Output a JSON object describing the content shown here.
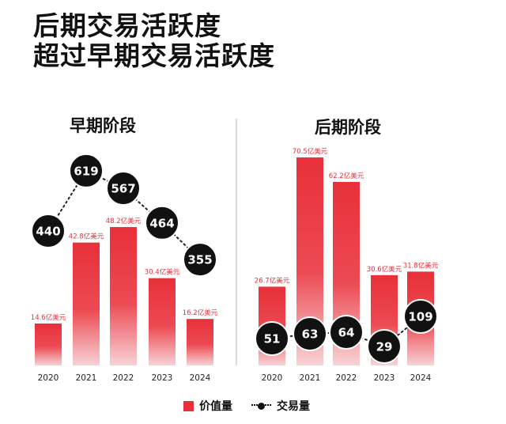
{
  "headline": {
    "line1": "后期交易活跃度",
    "line2": "超过早期交易活跃度"
  },
  "legend": {
    "bar_label": "价值量",
    "line_label": "交易量"
  },
  "colors": {
    "bar_top": "#e8303a",
    "bar_bottom": "#f7d3d6",
    "bubble": "#111111",
    "value_label": "#e8303a"
  },
  "chart_data": [
    {
      "type": "bar",
      "title": "早期阶段",
      "categories": [
        "2020",
        "2021",
        "2022",
        "2023",
        "2024"
      ],
      "series": [
        {
          "name": "价值量",
          "values": [
            14.6,
            42.8,
            48.2,
            30.4,
            16.2
          ],
          "labels": [
            "14.6亿美元",
            "42.8亿美元",
            "48.2亿美元",
            "30.4亿美元",
            "16.2亿美元"
          ]
        },
        {
          "name": "交易量",
          "type": "line",
          "values": [
            440,
            619,
            567,
            464,
            355
          ]
        }
      ]
    },
    {
      "type": "bar",
      "title": "后期阶段",
      "categories": [
        "2020",
        "2021",
        "2022",
        "2023",
        "2024"
      ],
      "series": [
        {
          "name": "价值量",
          "values": [
            26.7,
            70.5,
            62.2,
            30.6,
            31.8
          ],
          "labels": [
            "26.7亿美元",
            "70.5亿美元",
            "62.2亿美元",
            "30.6亿美元",
            "31.8亿美元"
          ]
        },
        {
          "name": "交易量",
          "type": "line",
          "values": [
            51,
            63,
            64,
            29,
            109
          ]
        }
      ]
    }
  ]
}
